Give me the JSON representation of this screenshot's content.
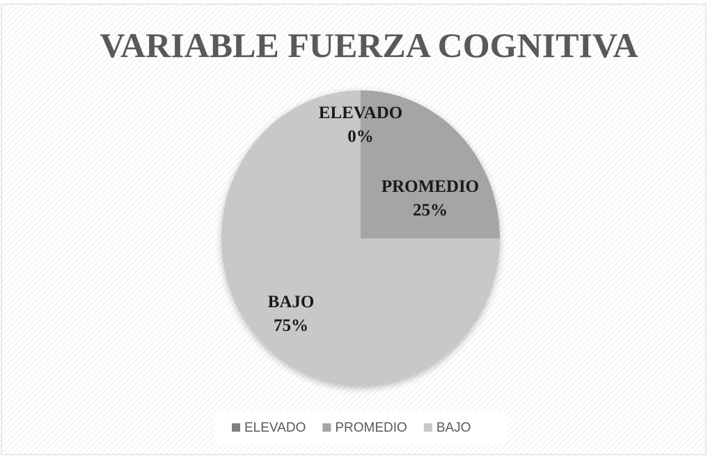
{
  "chart_data": {
    "type": "pie",
    "title": "VARIABLE FUERZA COGNITIVA",
    "categories": [
      "ELEVADO",
      "PROMEDIO",
      "BAJO"
    ],
    "values": [
      0,
      25,
      75
    ],
    "value_labels": [
      "0%",
      "25%",
      "75%"
    ],
    "colors": [
      "#7f7f7f",
      "#a5a5a5",
      "#c8c8c8"
    ],
    "legend": "bottom"
  }
}
